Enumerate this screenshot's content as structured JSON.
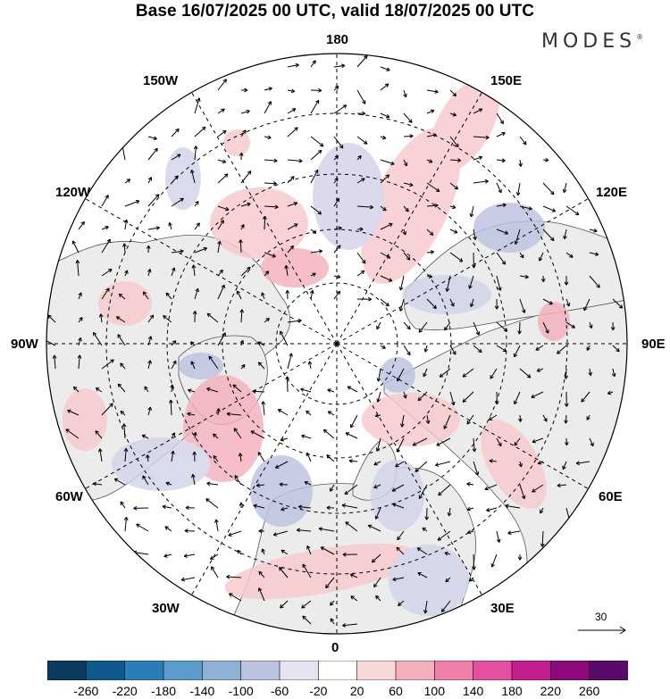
{
  "header": {
    "title": "Base 16/07/2025 00 UTC, valid 18/07/2025 00 UTC",
    "brand": "MODES",
    "brand_mark": "®"
  },
  "map": {
    "projection": "north polar stereographic",
    "longitude_labels": {
      "n180": "180",
      "n150w": "150W",
      "n150e": "150E",
      "n120w": "120W",
      "n120e": "120E",
      "n90w": "90W",
      "n90e": "90E",
      "n60w": "60W",
      "n60e": "60E",
      "n30w": "30W",
      "n30e": "30E",
      "n0": "0"
    },
    "colors": {
      "land": "#ececec",
      "ocean": "#ffffff",
      "coast": "#444444",
      "grid": "#000000",
      "positive": "#f7c9cc",
      "negative": "#d2d3e8"
    },
    "wind_reference": {
      "value": "30"
    }
  },
  "colorbar": {
    "labels": [
      "-260",
      "-220",
      "-180",
      "-140",
      "-100",
      "-60",
      "-20",
      "20",
      "60",
      "100",
      "140",
      "180",
      "220",
      "260"
    ],
    "colors": [
      "#0a3a5e",
      "#0f5a8c",
      "#2b7db7",
      "#5a9ccb",
      "#8fb1d8",
      "#bcc3e0",
      "#e4e3ef",
      "#ffffff",
      "#f7d9da",
      "#f4b0bd",
      "#ee7faa",
      "#e44f9f",
      "#c41d8f",
      "#8e0a7c",
      "#5a0a6a"
    ]
  }
}
